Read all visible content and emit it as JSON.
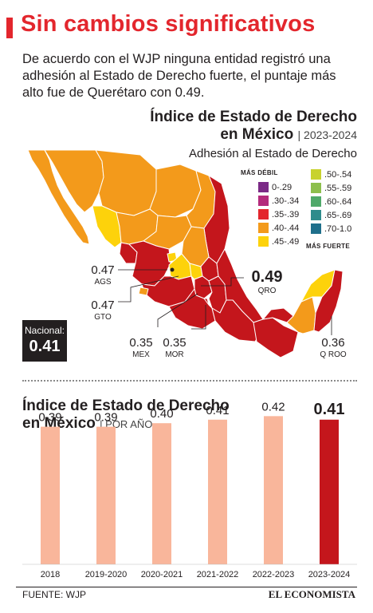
{
  "headline": "Sin cambios significativos",
  "intro": "De acuerdo con el WJP ninguna entidad registró una adhesión al Estado de Derecho fuerte, el puntaje más alto fue de Querétaro con 0.49.",
  "map": {
    "title_line1": "Índice de Estado de Derecho",
    "title_line2": "en México",
    "title_period": "| 2023-2024",
    "subtitle": "Adhesión al Estado de Derecho",
    "legend": {
      "weak_label": "MÁS DÉBIL",
      "strong_label": "MÁS FUERTE",
      "ranges": [
        {
          "label": "0-.29",
          "color": "#7b2a86"
        },
        {
          "label": ".30-.34",
          "color": "#b42b7c"
        },
        {
          "label": ".35-.39",
          "color": "#e3262d"
        },
        {
          "label": ".40-.44",
          "color": "#f39a1b"
        },
        {
          "label": ".45-.49",
          "color": "#fdd20b"
        },
        {
          "label": ".50-.54",
          "color": "#c8d22e"
        },
        {
          "label": ".55-.59",
          "color": "#8dbf4d"
        },
        {
          "label": ".60-.64",
          "color": "#4fa96a"
        },
        {
          "label": ".65-.69",
          "color": "#2f8c8c"
        },
        {
          "label": ".70-1.0",
          "color": "#1f6f8b"
        }
      ]
    },
    "callouts": {
      "ags": {
        "value": "0.47",
        "state": "AGS"
      },
      "gto": {
        "value": "0.47",
        "state": "GTO"
      },
      "qro": {
        "value": "0.49",
        "state": "QRO"
      },
      "mex": {
        "value": "0.35",
        "state": "MEX"
      },
      "mor": {
        "value": "0.35",
        "state": "MOR"
      },
      "qroo": {
        "value": "0.36",
        "state": "Q ROO"
      }
    },
    "national_label": "Nacional:",
    "national_value": "0.41"
  },
  "chart_data": {
    "type": "bar",
    "title": "Índice de Estado de Derecho en México",
    "subtitle": "POR AÑO",
    "categories": [
      "2018",
      "2019-2020",
      "2020-2021",
      "2021-2022",
      "2022-2023",
      "2023-2024"
    ],
    "values": [
      0.39,
      0.39,
      0.4,
      0.41,
      0.42,
      0.41
    ],
    "value_labels": [
      "0.39",
      "0.39",
      "0.40",
      "0.41",
      "0.42",
      "0.41"
    ],
    "colors": [
      "#f9b69b",
      "#f9b69b",
      "#f9b69b",
      "#f9b69b",
      "#f9b69b",
      "#c4161c"
    ],
    "highlight_index": 5,
    "xlabel": "",
    "ylabel": ""
  },
  "footer": {
    "source": "FUENTE: WJP",
    "brand": "EL ECONOMISTA"
  }
}
